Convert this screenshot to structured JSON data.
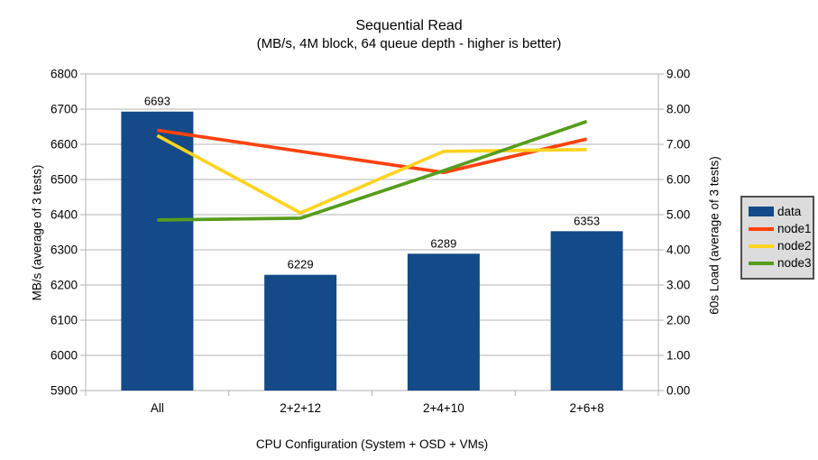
{
  "title": "Sequential Read",
  "subtitle": "(MB/s, 4M block, 64 queue depth - higher is better)",
  "legend": {
    "position": "right",
    "items": [
      {
        "label": "data",
        "color": "#134a87",
        "swatch": "bar"
      },
      {
        "label": "node1",
        "color": "#ff420e",
        "swatch": "line"
      },
      {
        "label": "node2",
        "color": "#ffd320",
        "swatch": "line"
      },
      {
        "label": "node3",
        "color": "#579d1c",
        "swatch": "line"
      }
    ]
  },
  "chart_data": {
    "type": "bar",
    "subtype": "combo bar + lines, dual y-axis",
    "title": "Sequential Read",
    "subtitle": "(MB/s, 4M block, 64 queue depth - higher is better)",
    "categories": [
      "All",
      "2+2+12",
      "2+4+10",
      "2+6+8"
    ],
    "bar_series": {
      "name": "data",
      "axis": "left",
      "color": "#134a87",
      "values": [
        6693,
        6229,
        6289,
        6353
      ],
      "labels": [
        "6693",
        "6229",
        "6289",
        "6353"
      ]
    },
    "line_series": [
      {
        "name": "node1",
        "axis": "right",
        "color": "#ff420e",
        "values": [
          7.4,
          6.8,
          6.2,
          7.15
        ]
      },
      {
        "name": "node2",
        "axis": "right",
        "color": "#ffd320",
        "values": [
          7.25,
          5.05,
          6.8,
          6.85
        ]
      },
      {
        "name": "node3",
        "axis": "right",
        "color": "#579d1c",
        "values": [
          4.85,
          4.9,
          6.25,
          7.65
        ]
      }
    ],
    "xlabel": "CPU Configuration (System + OSD + VMs)",
    "ylabel_left": "MB/s (average of 3 tests)",
    "ylabel_right": "60s Load (average of 3 tests)",
    "y_left": {
      "min": 5900,
      "max": 6800,
      "step": 100,
      "ticks": [
        "5900",
        "6000",
        "6100",
        "6200",
        "6300",
        "6400",
        "6500",
        "6600",
        "6700",
        "6800"
      ]
    },
    "y_right": {
      "min": 0,
      "max": 9,
      "step": 1,
      "ticks": [
        "0.00",
        "1.00",
        "2.00",
        "3.00",
        "4.00",
        "5.00",
        "6.00",
        "7.00",
        "8.00",
        "9.00"
      ]
    },
    "grid": true,
    "legend_position": "right",
    "colors": {
      "grid": "#b3b3b3",
      "axis": "#b3b3b3",
      "text": "#000000",
      "legend_bg": "#dcdcdc",
      "legend_border": "#4f4f4f",
      "background": "#ffffff"
    }
  }
}
